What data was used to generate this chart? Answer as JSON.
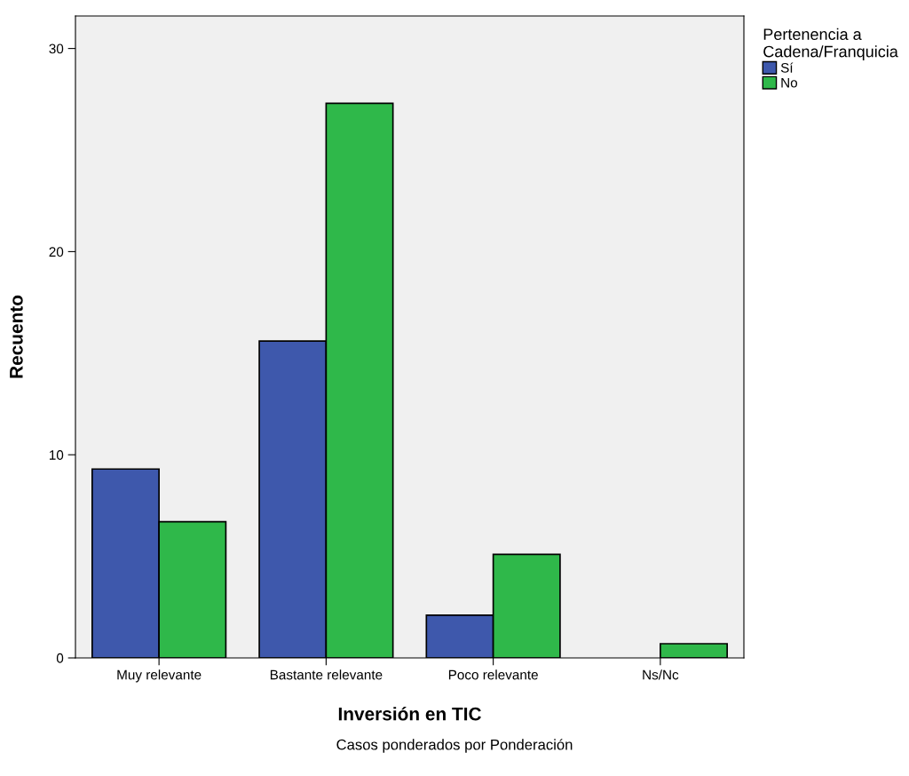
{
  "chart_data": {
    "type": "bar",
    "xlabel": "Inversión en TIC",
    "ylabel": "Recuento",
    "legend_title": "Pertenencia a\nCadena/Franquicia",
    "categories": [
      "Muy relevante",
      "Bastante relevante",
      "Poco relevante",
      "Ns/Nc"
    ],
    "series": [
      {
        "name": "Sí",
        "color": "#3e58ac",
        "values": [
          9.3,
          15.6,
          2.1,
          null
        ]
      },
      {
        "name": "No",
        "color": "#2fb84a",
        "values": [
          6.7,
          27.3,
          5.1,
          0.7
        ]
      }
    ],
    "ylim": [
      0,
      31.6
    ],
    "yticks": [
      0,
      10,
      20,
      30
    ],
    "grid": false,
    "legend": "top right",
    "annotations": [
      "Casos ponderados por Ponderación"
    ]
  }
}
